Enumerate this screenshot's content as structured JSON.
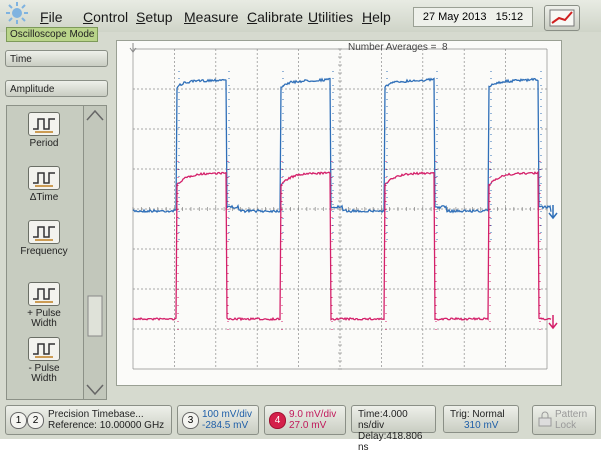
{
  "menu": {
    "items": [
      "File",
      "Control",
      "Setup",
      "Measure",
      "Calibrate",
      "Utilities",
      "Help"
    ],
    "date": "27 May 2013",
    "time": "15:12"
  },
  "mode": "Oscilloscope Mode",
  "side": {
    "time": "Time",
    "amplitude": "Amplitude",
    "tools": [
      "Period",
      "ΔTime",
      "Frequency",
      "+ Pulse Width",
      "- Pulse Width"
    ]
  },
  "display": {
    "averages_label": "Number Averages =",
    "averages": 8
  },
  "status": {
    "ch1": 1,
    "ch2": 2,
    "timebase": "Precision Timebase...",
    "reference": "Reference: 10.00000 GHz",
    "ch3": {
      "num": 3,
      "scale": "100 mV/div",
      "offset": "-284.5 mV"
    },
    "ch4": {
      "num": 4,
      "scale": "9.0 mV/div",
      "offset": "27.0 mV"
    },
    "time": "Time:4.000 ns/div",
    "delay": "Delay:418.806 ns",
    "trig": "Trig: Normal",
    "trig_level": "310 mV",
    "pattern": "Pattern",
    "lock": "Lock"
  }
}
